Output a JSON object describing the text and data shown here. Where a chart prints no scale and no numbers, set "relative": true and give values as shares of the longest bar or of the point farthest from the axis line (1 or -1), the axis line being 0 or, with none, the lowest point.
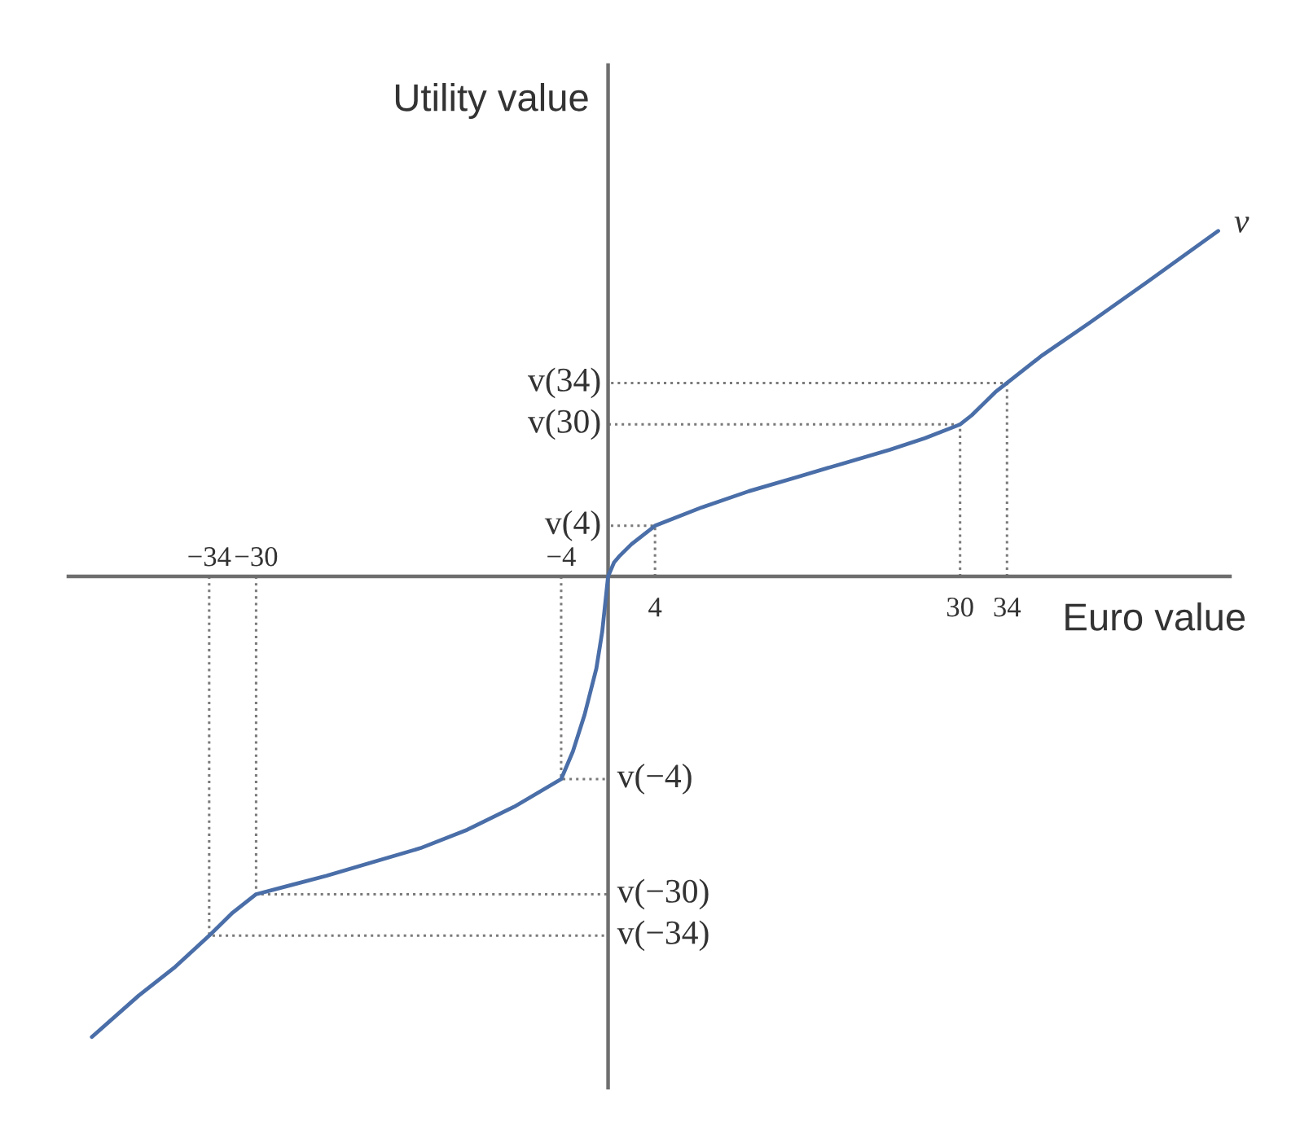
{
  "chart_data": {
    "type": "line",
    "xlabel": "Euro value",
    "ylabel": "Utility value",
    "relative": true,
    "line_style": "solid",
    "xlim": [
      -46,
      53
    ],
    "xticks": [
      4,
      30,
      34
    ],
    "x2lim": [
      -46,
      53
    ],
    "x2ticks": [
      -34,
      -30,
      -4
    ],
    "series": [
      {
        "name": "v",
        "color": "#4a6ea8",
        "x": [
          -44,
          -40,
          -37,
          -34,
          -32,
          -30,
          -27,
          -24,
          -20,
          -16,
          -12,
          -8,
          -4,
          -3,
          -2,
          -1,
          -0.5,
          0,
          0.5,
          1,
          2,
          3,
          4,
          8,
          12,
          16,
          20,
          24,
          27,
          30,
          31,
          32,
          33,
          34,
          37,
          41,
          46,
          52
        ],
        "values": [
          -1.0,
          -0.91,
          -0.85,
          -0.78,
          -0.73,
          -0.69,
          -0.67,
          -0.65,
          -0.62,
          -0.59,
          -0.55,
          -0.5,
          -0.44,
          -0.38,
          -0.3,
          -0.2,
          -0.12,
          0,
          0.03,
          0.045,
          0.07,
          0.09,
          0.11,
          0.15,
          0.185,
          0.215,
          0.245,
          0.275,
          0.3,
          0.33,
          0.35,
          0.375,
          0.4,
          0.42,
          0.48,
          0.55,
          0.64,
          0.75
        ]
      },
      {
        "name": "v(34)",
        "color": "#7a7a7a",
        "line_style": "dotted",
        "x": [
          34,
          34,
          0
        ],
        "values": [
          0,
          0.42,
          0.42
        ]
      },
      {
        "name": "v(30)",
        "color": "#7a7a7a",
        "line_style": "dotted",
        "x": [
          30,
          30,
          0
        ],
        "values": [
          0,
          0.33,
          0.33
        ]
      },
      {
        "name": "v(4)",
        "color": "#7a7a7a",
        "line_style": "dotted",
        "x": [
          4,
          4,
          0
        ],
        "values": [
          0,
          0.11,
          0.11
        ]
      },
      {
        "name": "v(−4)",
        "color": "#7a7a7a",
        "line_style": "dotted",
        "x": [
          -4,
          -4,
          0
        ],
        "values": [
          0,
          -0.44,
          -0.44
        ]
      },
      {
        "name": "v(−30)",
        "color": "#7a7a7a",
        "line_style": "dotted",
        "x": [
          -30,
          -30,
          0
        ],
        "values": [
          0,
          -0.69,
          -0.69
        ]
      },
      {
        "name": "v(−34)",
        "color": "#7a7a7a",
        "line_style": "dotted",
        "x": [
          -34,
          -34,
          0
        ],
        "values": [
          0,
          -0.78,
          -0.78
        ]
      }
    ]
  }
}
